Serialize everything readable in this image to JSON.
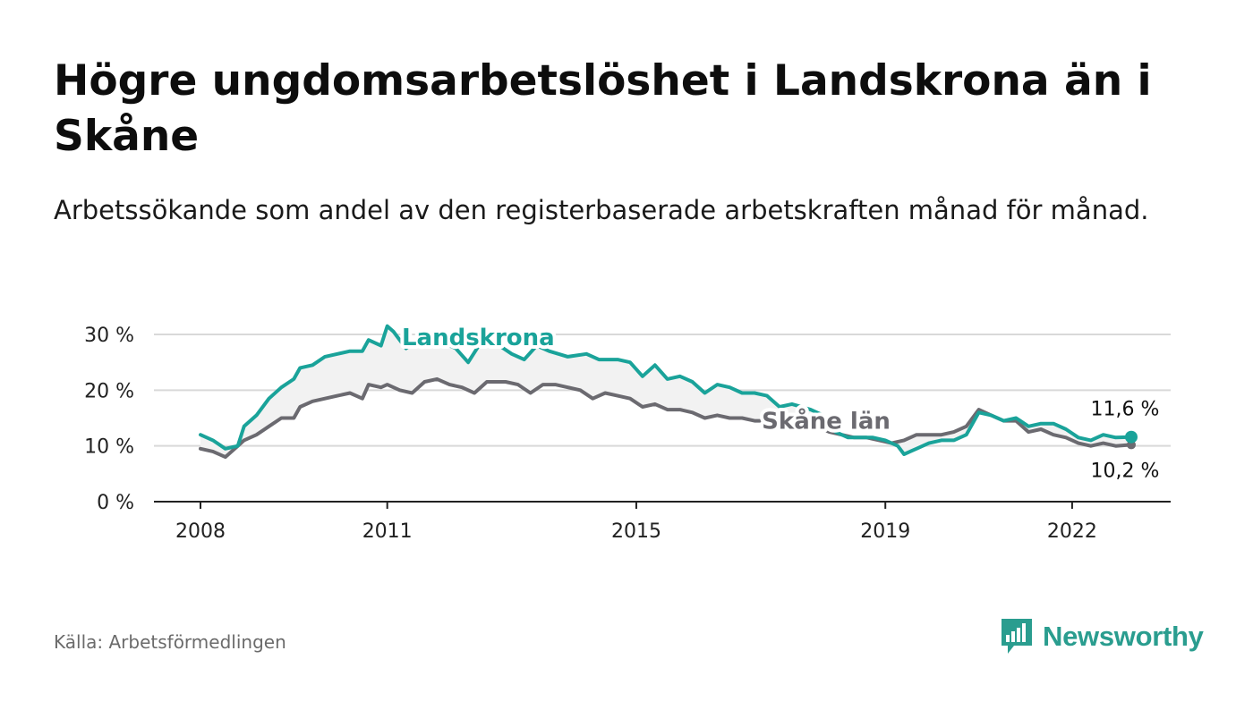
{
  "title": "Högre ungdomsarbetslöshet i Landskrona än i Skåne",
  "subtitle": "Arbetssökande som andel av den registerbaserade arbetskraften månad för månad.",
  "source": "Källa: Arbetsförmedlingen",
  "brand": {
    "name": "Newsworthy",
    "color": "#2a9d8f",
    "icon": "bar-chart-speech-bubble-icon"
  },
  "colors": {
    "landskrona": "#1aa39a",
    "skane": "#6b6a70",
    "band": "#f2f2f2",
    "grid": "#d9d9d9",
    "axis": "#222222"
  },
  "chart_data": {
    "type": "line",
    "title": "Högre ungdomsarbetslöshet i Landskrona än i Skåne",
    "xlabel": "",
    "ylabel": "",
    "xlim": [
      2008.0,
      2022.95
    ],
    "ylim": [
      0,
      30
    ],
    "y_ticks": [
      {
        "value": 0,
        "label": "0 %"
      },
      {
        "value": 10,
        "label": "10 %"
      },
      {
        "value": 20,
        "label": "20 %"
      },
      {
        "value": 30,
        "label": "30 %"
      }
    ],
    "x_ticks": [
      {
        "value": 2008,
        "label": "2008"
      },
      {
        "value": 2011,
        "label": "2011"
      },
      {
        "value": 2015,
        "label": "2015"
      },
      {
        "value": 2019,
        "label": "2019"
      },
      {
        "value": 2022,
        "label": "2022"
      }
    ],
    "legend_placement": "inline",
    "series": [
      {
        "name": "Landskrona",
        "label_anchor": [
          2011.8,
          29.5
        ],
        "end_label": "11,6 %",
        "points": [
          [
            2008.0,
            12.0
          ],
          [
            2008.2,
            11.0
          ],
          [
            2008.4,
            9.5
          ],
          [
            2008.6,
            10.0
          ],
          [
            2008.7,
            13.5
          ],
          [
            2008.9,
            15.5
          ],
          [
            2009.1,
            18.5
          ],
          [
            2009.3,
            20.5
          ],
          [
            2009.5,
            22.0
          ],
          [
            2009.6,
            24.0
          ],
          [
            2009.8,
            24.5
          ],
          [
            2010.0,
            26.0
          ],
          [
            2010.2,
            26.5
          ],
          [
            2010.4,
            27.0
          ],
          [
            2010.6,
            27.0
          ],
          [
            2010.7,
            29.0
          ],
          [
            2010.9,
            28.0
          ],
          [
            2011.0,
            31.5
          ],
          [
            2011.1,
            30.5
          ],
          [
            2011.3,
            27.5
          ],
          [
            2011.5,
            29.0
          ],
          [
            2011.8,
            29.0
          ],
          [
            2012.1,
            27.5
          ],
          [
            2012.3,
            25.0
          ],
          [
            2012.5,
            28.5
          ],
          [
            2012.8,
            28.0
          ],
          [
            2013.0,
            26.5
          ],
          [
            2013.2,
            25.5
          ],
          [
            2013.4,
            28.0
          ],
          [
            2013.6,
            27.0
          ],
          [
            2013.9,
            26.0
          ],
          [
            2014.2,
            26.5
          ],
          [
            2014.4,
            25.5
          ],
          [
            2014.7,
            25.5
          ],
          [
            2014.9,
            25.0
          ],
          [
            2015.1,
            22.5
          ],
          [
            2015.3,
            24.5
          ],
          [
            2015.5,
            22.0
          ],
          [
            2015.7,
            22.5
          ],
          [
            2015.9,
            21.5
          ],
          [
            2016.1,
            19.5
          ],
          [
            2016.3,
            21.0
          ],
          [
            2016.5,
            20.5
          ],
          [
            2016.7,
            19.5
          ],
          [
            2016.9,
            19.5
          ],
          [
            2017.1,
            19.0
          ],
          [
            2017.3,
            17.0
          ],
          [
            2017.5,
            17.5
          ],
          [
            2017.8,
            16.5
          ],
          [
            2018.0,
            15.5
          ],
          [
            2018.2,
            12.5
          ],
          [
            2018.4,
            11.5
          ],
          [
            2018.6,
            11.5
          ],
          [
            2018.8,
            11.5
          ],
          [
            2019.0,
            11.0
          ],
          [
            2019.2,
            10.0
          ],
          [
            2019.3,
            8.5
          ],
          [
            2019.5,
            9.5
          ],
          [
            2019.7,
            10.5
          ],
          [
            2019.9,
            11.0
          ],
          [
            2020.1,
            11.0
          ],
          [
            2020.3,
            12.0
          ],
          [
            2020.5,
            16.0
          ],
          [
            2020.7,
            15.5
          ],
          [
            2020.9,
            14.5
          ],
          [
            2021.1,
            15.0
          ],
          [
            2021.3,
            13.5
          ],
          [
            2021.5,
            14.0
          ],
          [
            2021.7,
            14.0
          ],
          [
            2021.9,
            13.0
          ],
          [
            2022.1,
            11.5
          ],
          [
            2022.3,
            11.0
          ],
          [
            2022.5,
            12.0
          ],
          [
            2022.7,
            11.5
          ],
          [
            2022.95,
            11.6
          ]
        ]
      },
      {
        "name": "Skåne län",
        "label_anchor": [
          2017.1,
          14.5
        ],
        "end_label": "10,2 %",
        "points": [
          [
            2008.0,
            9.5
          ],
          [
            2008.2,
            9.0
          ],
          [
            2008.4,
            8.0
          ],
          [
            2008.6,
            10.0
          ],
          [
            2008.7,
            11.0
          ],
          [
            2008.9,
            12.0
          ],
          [
            2009.1,
            13.5
          ],
          [
            2009.3,
            15.0
          ],
          [
            2009.5,
            15.0
          ],
          [
            2009.6,
            17.0
          ],
          [
            2009.8,
            18.0
          ],
          [
            2010.0,
            18.5
          ],
          [
            2010.2,
            19.0
          ],
          [
            2010.4,
            19.5
          ],
          [
            2010.6,
            18.5
          ],
          [
            2010.7,
            21.0
          ],
          [
            2010.9,
            20.5
          ],
          [
            2011.0,
            21.0
          ],
          [
            2011.2,
            20.0
          ],
          [
            2011.4,
            19.5
          ],
          [
            2011.6,
            21.5
          ],
          [
            2011.8,
            22.0
          ],
          [
            2012.0,
            21.0
          ],
          [
            2012.2,
            20.5
          ],
          [
            2012.4,
            19.5
          ],
          [
            2012.6,
            21.5
          ],
          [
            2012.9,
            21.5
          ],
          [
            2013.1,
            21.0
          ],
          [
            2013.3,
            19.5
          ],
          [
            2013.5,
            21.0
          ],
          [
            2013.7,
            21.0
          ],
          [
            2013.9,
            20.5
          ],
          [
            2014.1,
            20.0
          ],
          [
            2014.3,
            18.5
          ],
          [
            2014.5,
            19.5
          ],
          [
            2014.7,
            19.0
          ],
          [
            2014.9,
            18.5
          ],
          [
            2015.1,
            17.0
          ],
          [
            2015.3,
            17.5
          ],
          [
            2015.5,
            16.5
          ],
          [
            2015.7,
            16.5
          ],
          [
            2015.9,
            16.0
          ],
          [
            2016.1,
            15.0
          ],
          [
            2016.3,
            15.5
          ],
          [
            2016.5,
            15.0
          ],
          [
            2016.7,
            15.0
          ],
          [
            2016.9,
            14.5
          ],
          [
            2017.1,
            14.5
          ],
          [
            2017.4,
            14.0
          ],
          [
            2017.7,
            13.5
          ],
          [
            2017.9,
            13.5
          ],
          [
            2018.1,
            12.5
          ],
          [
            2018.3,
            12.0
          ],
          [
            2018.5,
            11.5
          ],
          [
            2018.7,
            11.5
          ],
          [
            2018.9,
            11.0
          ],
          [
            2019.1,
            10.5
          ],
          [
            2019.3,
            11.0
          ],
          [
            2019.5,
            12.0
          ],
          [
            2019.7,
            12.0
          ],
          [
            2019.9,
            12.0
          ],
          [
            2020.1,
            12.5
          ],
          [
            2020.3,
            13.5
          ],
          [
            2020.5,
            16.5
          ],
          [
            2020.7,
            15.5
          ],
          [
            2020.9,
            14.5
          ],
          [
            2021.1,
            14.5
          ],
          [
            2021.3,
            12.5
          ],
          [
            2021.5,
            13.0
          ],
          [
            2021.7,
            12.0
          ],
          [
            2021.9,
            11.5
          ],
          [
            2022.1,
            10.5
          ],
          [
            2022.3,
            10.0
          ],
          [
            2022.5,
            10.5
          ],
          [
            2022.7,
            10.0
          ],
          [
            2022.95,
            10.2
          ]
        ]
      }
    ]
  }
}
